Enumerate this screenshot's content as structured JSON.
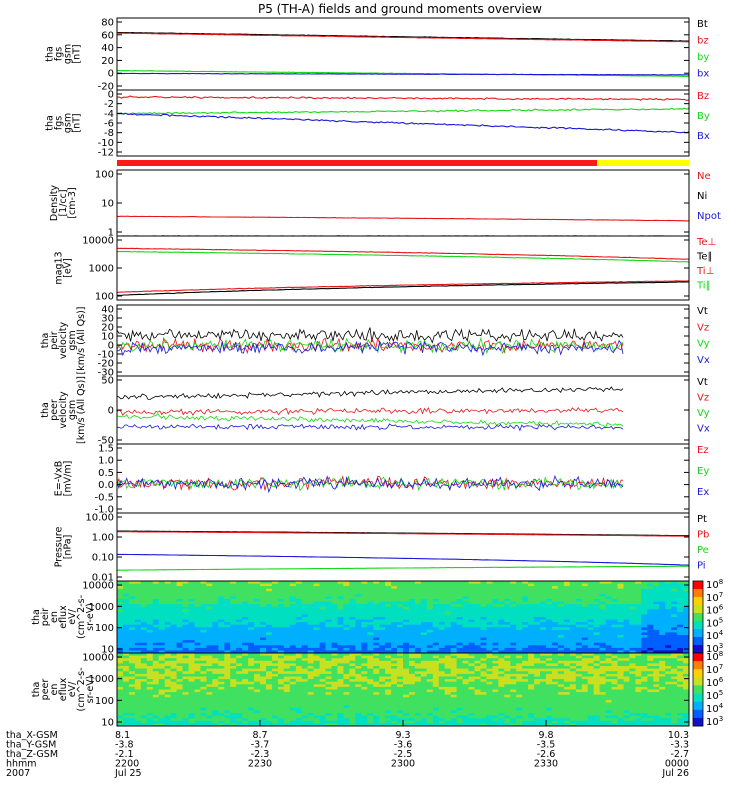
{
  "title": "P5 (TH-A) fields and ground moments overview",
  "colors": {
    "black": "#000000",
    "red": "#e8161b",
    "green": "#17d817",
    "blue": "#1a1ad8"
  },
  "chart_data": [
    {
      "type": "line",
      "id": "p1",
      "ylabel": [
        "tha",
        "fgs",
        "gsm",
        "[nT]"
      ],
      "yticks": [
        "80",
        "60",
        "40",
        "20",
        "0",
        "-20"
      ],
      "ylim": [
        -20,
        80
      ],
      "legend": [
        {
          "name": "Bt",
          "color": "black"
        },
        {
          "name": "bz",
          "color": "red"
        },
        {
          "name": "by",
          "color": "green"
        },
        {
          "name": "bx",
          "color": "blue"
        }
      ],
      "series": [
        {
          "name": "Bt",
          "start": 60,
          "end": 48
        },
        {
          "name": "bz",
          "start": 59,
          "end": 47
        },
        {
          "name": "by",
          "start": 7,
          "end": -1
        },
        {
          "name": "bx",
          "start": 3,
          "end": 1
        }
      ]
    },
    {
      "type": "line",
      "id": "p2",
      "ylabel": [
        "tha",
        "fgs",
        "gsm",
        "[nT]"
      ],
      "yticks": [
        "0",
        "-2",
        "-4",
        "-6",
        "-8",
        "-10",
        "-12"
      ],
      "ylim": [
        -13,
        1
      ],
      "legend": [
        {
          "name": "Bz",
          "color": "red"
        },
        {
          "name": "By",
          "color": "green"
        },
        {
          "name": "Bx",
          "color": "blue"
        }
      ],
      "series": [
        {
          "name": "Bz",
          "start": -0.5,
          "end": -1
        },
        {
          "name": "By",
          "start": -4,
          "end": -3
        },
        {
          "name": "Bx",
          "start": -4,
          "end": -8
        }
      ]
    },
    {
      "type": "line",
      "id": "p3",
      "ylabel": [
        "Density",
        "[1/cc]",
        "[cm-3]"
      ],
      "yticks": [
        "100",
        "10",
        "1"
      ],
      "log": true,
      "ylim": [
        0.5,
        200
      ],
      "legend": [
        {
          "name": "Ne",
          "color": "red"
        },
        {
          "name": "Ni",
          "color": "black"
        },
        {
          "name": "Npot",
          "color": "blue"
        }
      ],
      "series": [
        {
          "name": "Ne",
          "start": 3,
          "end": 2
        },
        {
          "name": "Ni",
          "start": 0.5,
          "end": 0.5
        }
      ]
    },
    {
      "type": "line",
      "id": "p4",
      "ylabel": [
        "mag13",
        "[eV]"
      ],
      "yticks": [
        "10000",
        "1000",
        "100"
      ],
      "log": true,
      "ylim": [
        40,
        12000
      ],
      "legend": [
        {
          "name": "Te⊥",
          "color": "red"
        },
        {
          "name": "Te∥",
          "color": "black"
        },
        {
          "name": "Ti⊥",
          "color": "red"
        },
        {
          "name": "Ti∥",
          "color": "green"
        }
      ],
      "series": [
        {
          "name": "Ti⊥",
          "start": 4000,
          "end": 1500
        },
        {
          "name": "Ti∥",
          "start": 3000,
          "end": 1200
        },
        {
          "name": "Te⊥",
          "start": 80,
          "end": 220
        },
        {
          "name": "Te∥",
          "start": 60,
          "end": 200
        }
      ]
    },
    {
      "type": "line",
      "id": "p5",
      "ylabel": [
        "tha",
        "peir",
        "velocity",
        "gsm",
        "[km/s (All Qs)]"
      ],
      "yticks": [
        "40",
        "30",
        "20",
        "10",
        "0",
        "-10",
        "-20",
        "-30"
      ],
      "ylim": [
        -30,
        40
      ],
      "legend": [
        {
          "name": "Vt",
          "color": "black"
        },
        {
          "name": "Vz",
          "color": "red"
        },
        {
          "name": "Vy",
          "color": "green"
        },
        {
          "name": "Vx",
          "color": "blue"
        }
      ],
      "series": [
        {
          "name": "Vt",
          "start": 10,
          "end": 10
        },
        {
          "name": "Vz",
          "start": 0,
          "end": 0
        },
        {
          "name": "Vy",
          "start": 0,
          "end": 0
        },
        {
          "name": "Vx",
          "start": -2,
          "end": -2
        }
      ]
    },
    {
      "type": "line",
      "id": "p6",
      "ylabel": [
        "tha",
        "peer",
        "velocity",
        "gsm",
        "[km/s (All Qs)]"
      ],
      "yticks": [
        "50",
        "0",
        "-50"
      ],
      "ylim": [
        -70,
        90
      ],
      "legend": [
        {
          "name": "Vt",
          "color": "black"
        },
        {
          "name": "Vz",
          "color": "red"
        },
        {
          "name": "Vy",
          "color": "green"
        },
        {
          "name": "Vx",
          "color": "blue"
        }
      ],
      "series": [
        {
          "name": "Vt",
          "start": 40,
          "end": 60
        },
        {
          "name": "Vz",
          "start": 5,
          "end": 10
        },
        {
          "name": "Vy",
          "start": -5,
          "end": -25
        },
        {
          "name": "Vx",
          "start": -30,
          "end": -30
        }
      ]
    },
    {
      "type": "line",
      "id": "p7",
      "ylabel": [
        "E=-VxB",
        "[mV/m]"
      ],
      "yticks": [
        "1.5",
        "1.0",
        "0.5",
        "0.0",
        "-0.5",
        "-1.0"
      ],
      "ylim": [
        -1.2,
        1.6
      ],
      "legend": [
        {
          "name": "Ez",
          "color": "red"
        },
        {
          "name": "Ey",
          "color": "green"
        },
        {
          "name": "Ex",
          "color": "blue"
        }
      ],
      "series": [
        {
          "name": "Ez",
          "start": 0,
          "end": 0
        },
        {
          "name": "Ey",
          "start": 0,
          "end": 0
        },
        {
          "name": "Ex",
          "start": 0,
          "end": 0
        }
      ]
    },
    {
      "type": "line",
      "id": "p8",
      "ylabel": [
        "Pressure",
        "[nPa]"
      ],
      "yticks": [
        "10.00",
        "1.00",
        "0.10",
        "0.01"
      ],
      "log": true,
      "ylim": [
        0.01,
        10
      ],
      "legend": [
        {
          "name": "Pt",
          "color": "black"
        },
        {
          "name": "Pb",
          "color": "red"
        },
        {
          "name": "Pe",
          "color": "green"
        },
        {
          "name": "Pi",
          "color": "blue"
        }
      ],
      "series": [
        {
          "name": "Pt",
          "start": 1.6,
          "end": 1.0
        },
        {
          "name": "Pb",
          "start": 1.5,
          "end": 0.95
        },
        {
          "name": "Pi",
          "start": 0.15,
          "end": 0.05
        },
        {
          "name": "Pe",
          "start": 0.03,
          "end": 0.045
        }
      ]
    },
    {
      "type": "heatmap",
      "id": "p9",
      "ylabel": [
        "tha",
        "peir",
        "en",
        "eflux",
        "eV/",
        "(cm^2-s-",
        "sr-eV)"
      ],
      "yticks": [
        "10000",
        "1000",
        "100",
        "10"
      ],
      "colorbar": [
        "10^8",
        "10^7",
        "10^6",
        "10^5",
        "10^4",
        "10^3"
      ]
    },
    {
      "type": "heatmap",
      "id": "p10",
      "ylabel": [
        "tha",
        "peer",
        "en",
        "eflux",
        "eV/",
        "(cm^2-s-",
        "sr-eV)"
      ],
      "yticks": [
        "10000",
        "1000",
        "100",
        "10"
      ],
      "colorbar": [
        "10^8",
        "10^7",
        "10^6",
        "10^5",
        "10^4",
        "10^3"
      ]
    }
  ],
  "ephemeris": {
    "labels": [
      "tha_X-GSM",
      "tha_Y-GSM",
      "tha_Z-GSM",
      "hhmm",
      "2007"
    ],
    "columns": [
      [
        "8.1",
        "-3.8",
        "-2.1",
        "2200",
        "Jul 25"
      ],
      [
        "8.7",
        "-3.7",
        "-2.3",
        "2230",
        ""
      ],
      [
        "9.3",
        "-3.6",
        "-2.5",
        "2300",
        ""
      ],
      [
        "9.8",
        "-3.5",
        "-2.6",
        "2330",
        ""
      ],
      [
        "10.3",
        "-3.3",
        "-2.7",
        "0000",
        "Jul 26"
      ]
    ]
  }
}
